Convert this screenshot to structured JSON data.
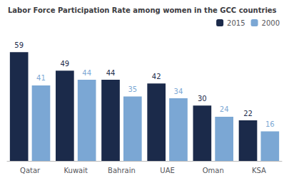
{
  "chart_data": {
    "type": "bar",
    "title": "Labor Force Participation Rate among women in the GCC countries",
    "categories": [
      "Qatar",
      "Kuwait",
      "Bahrain",
      "UAE",
      "Oman",
      "KSA"
    ],
    "series": [
      {
        "name": "2015",
        "color": "#1b2a4a",
        "values": [
          59,
          49,
          44,
          42,
          30,
          22
        ]
      },
      {
        "name": "2000",
        "color": "#7ba7d4",
        "values": [
          41,
          44,
          35,
          34,
          24,
          16
        ]
      }
    ],
    "ylim": [
      0,
      68
    ],
    "grid": false,
    "legend": "upper right",
    "data_labels": true,
    "tick_labels": "x"
  }
}
